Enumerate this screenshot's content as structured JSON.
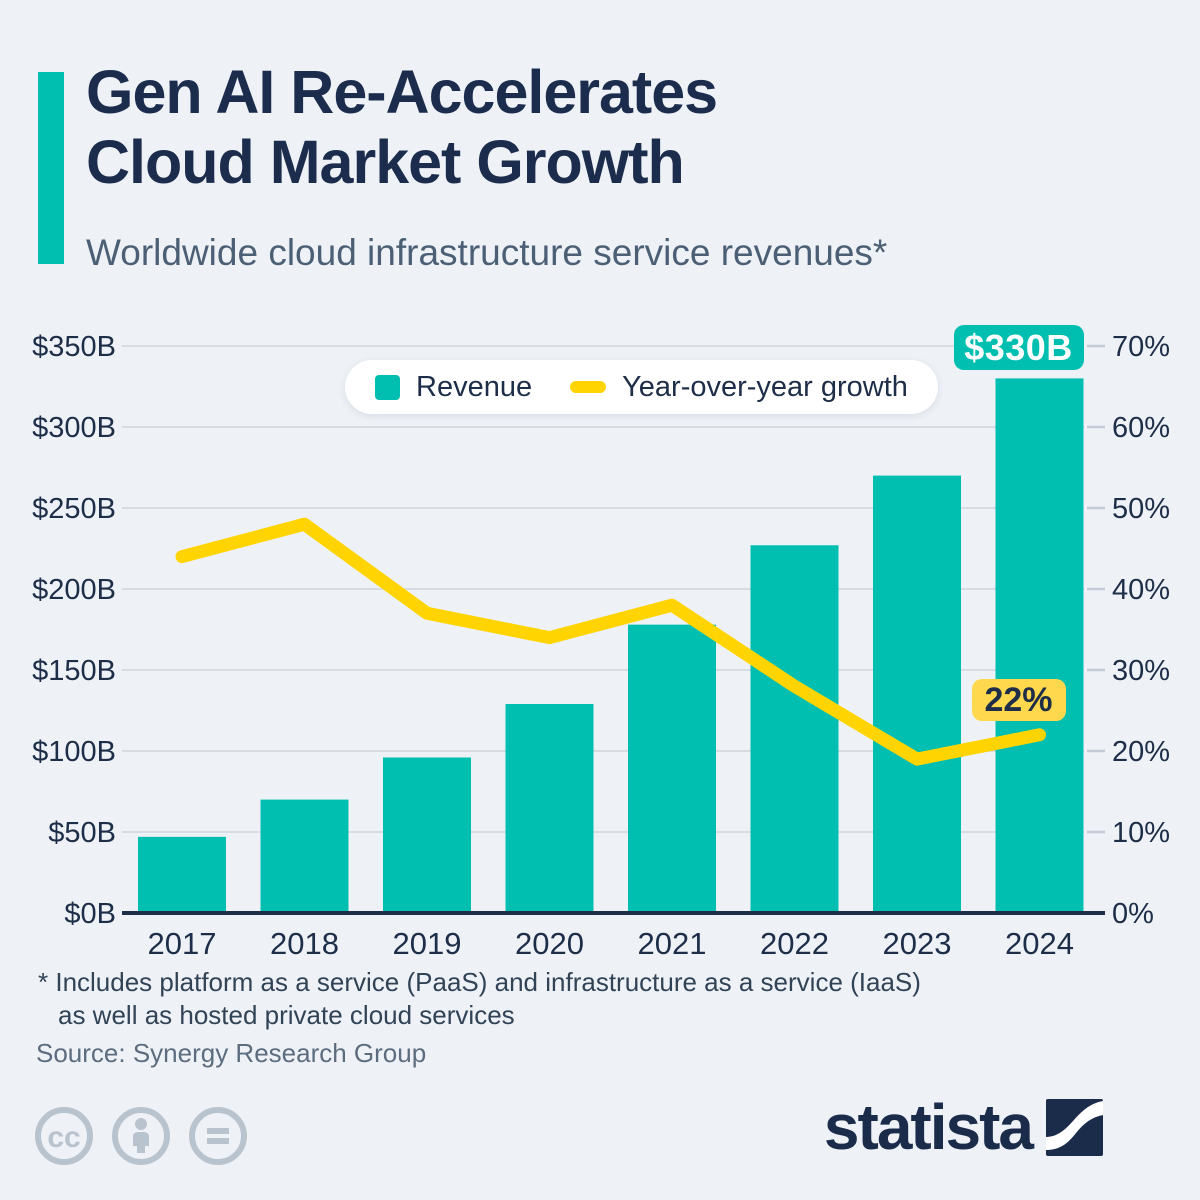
{
  "header": {
    "title_line1": "Gen AI Re-Accelerates",
    "title_line2": "Cloud Market Growth",
    "subtitle": "Worldwide cloud infrastructure service revenues*"
  },
  "chart_data": {
    "type": "bar",
    "title": "Worldwide cloud infrastructure service revenues",
    "categories": [
      "2017",
      "2018",
      "2019",
      "2020",
      "2021",
      "2022",
      "2023",
      "2024"
    ],
    "series": [
      {
        "name": "Revenue",
        "type": "bar",
        "unit": "USD billions",
        "color": "#00bfb0",
        "values": [
          47,
          70,
          96,
          129,
          178,
          227,
          270,
          330
        ]
      },
      {
        "name": "Year-over-year growth",
        "type": "line",
        "unit": "percent",
        "color": "#ffd400",
        "values": [
          44,
          48,
          37,
          34,
          38,
          28,
          19,
          22
        ]
      }
    ],
    "left_axis": {
      "min": 0,
      "max": 350,
      "step": 50,
      "ticks": [
        "$0B",
        "$50B",
        "$100B",
        "$150B",
        "$200B",
        "$250B",
        "$300B",
        "$350B"
      ]
    },
    "right_axis": {
      "min": 0,
      "max": 70,
      "step": 10,
      "ticks": [
        "0%",
        "10%",
        "20%",
        "30%",
        "40%",
        "50%",
        "60%",
        "70%"
      ]
    },
    "annotations": [
      {
        "target_category": "2024",
        "target_series": "Revenue",
        "label": "$330B",
        "bg": "#00bfb0",
        "fg": "#ffffff"
      },
      {
        "target_category": "2024",
        "target_series": "Year-over-year growth",
        "label": "22%",
        "bg": "#ffd84e",
        "fg": "#1e2e48"
      }
    ],
    "legend": [
      {
        "label": "Revenue",
        "swatch": "square",
        "color": "#00bfb0"
      },
      {
        "label": "Year-over-year growth",
        "swatch": "dash",
        "color": "#ffd400"
      }
    ],
    "grid": true,
    "legend_position": "top-center"
  },
  "footer": {
    "footnote_line1": "* Includes platform as a service (PaaS) and infrastructure as a service (IaaS)",
    "footnote_line2": "as well as hosted private cloud services",
    "source": "Source: Synergy Research Group",
    "license_icons": [
      "cc-icon",
      "attribution-person-icon",
      "no-derivatives-equals-icon"
    ],
    "brand": "statista"
  },
  "colors": {
    "background": "#eef2f7",
    "accent": "#00bfb0",
    "bar": "#00bfb0",
    "line": "#ffd400",
    "navy": "#1e2e48",
    "gridline": "#d7dce3",
    "license_gray": "#b9c3ce"
  }
}
